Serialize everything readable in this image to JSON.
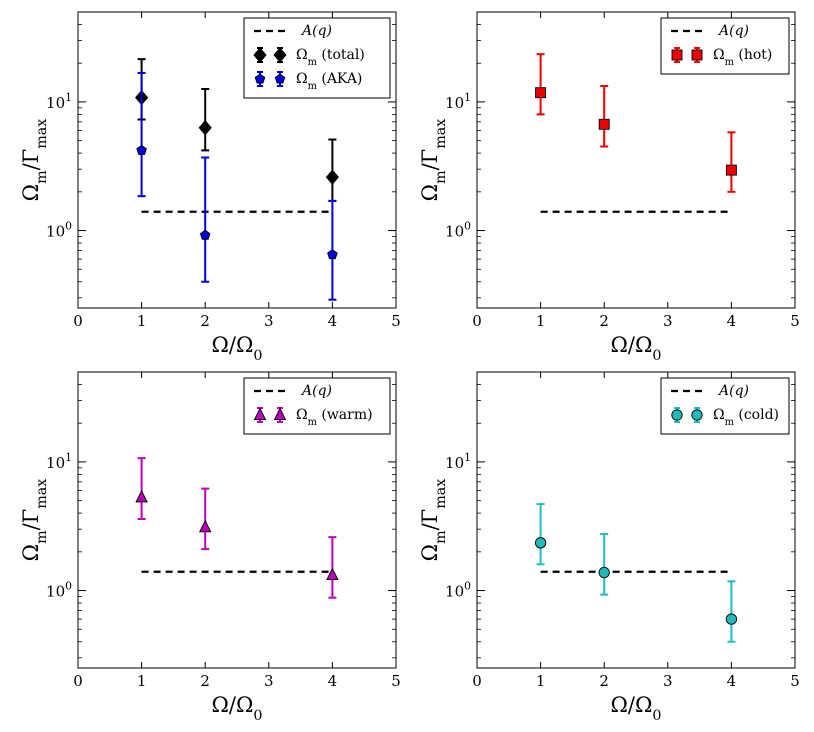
{
  "chart_data": [
    {
      "type": "scatter",
      "panel": "top-left",
      "xlabel": "Ω/Ω₀",
      "ylabel": "Ωm/Γmax",
      "xlim": [
        0,
        5
      ],
      "ylim": [
        0.25,
        50
      ],
      "yscale": "log",
      "xticks": [
        "0",
        "1",
        "2",
        "3",
        "4",
        "5"
      ],
      "yticks": [
        {
          "label": "10⁰",
          "value": 1
        },
        {
          "label": "10¹",
          "value": 10
        }
      ],
      "legend_position": "top-right",
      "reference_line": {
        "name": "A(q)",
        "x": [
          1,
          4
        ],
        "y": 1.4
      },
      "series": [
        {
          "name": "Ωm (total)",
          "color": "#000000",
          "marker": "diamond",
          "x": [
            1,
            2,
            4
          ],
          "y": [
            10.8,
            6.3,
            2.6
          ],
          "lower": [
            7.3,
            4.2,
            1.7
          ],
          "upper": [
            21.5,
            12.6,
            5.1
          ]
        },
        {
          "name": "Ωm (AKA)",
          "color": "#0000dd",
          "marker": "pentagon",
          "x": [
            1,
            2,
            4
          ],
          "y": [
            4.2,
            0.92,
            0.65
          ],
          "lower": [
            1.85,
            0.4,
            0.29
          ],
          "upper": [
            16.8,
            3.7,
            1.7
          ]
        }
      ]
    },
    {
      "type": "scatter",
      "panel": "top-right",
      "xlabel": "Ω/Ω₀",
      "ylabel": "Ωm/Γmax",
      "xlim": [
        0,
        5
      ],
      "ylim": [
        0.25,
        50
      ],
      "yscale": "log",
      "xticks": [
        "0",
        "1",
        "2",
        "3",
        "4",
        "5"
      ],
      "yticks": [
        {
          "label": "10⁰",
          "value": 1
        },
        {
          "label": "10¹",
          "value": 10
        }
      ],
      "legend_position": "top-right",
      "reference_line": {
        "name": "A(q)",
        "x": [
          1,
          4
        ],
        "y": 1.4
      },
      "series": [
        {
          "name": "Ωm (hot)",
          "color": "#ee0000",
          "marker": "square",
          "x": [
            1,
            2,
            4
          ],
          "y": [
            11.8,
            6.7,
            2.95
          ],
          "lower": [
            8.0,
            4.5,
            2.0
          ],
          "upper": [
            23.5,
            13.3,
            5.8
          ]
        }
      ]
    },
    {
      "type": "scatter",
      "panel": "bottom-left",
      "xlabel": "Ω/Ω₀",
      "ylabel": "Ωm/Γmax",
      "xlim": [
        0,
        5
      ],
      "ylim": [
        0.25,
        50
      ],
      "yscale": "log",
      "xticks": [
        "0",
        "1",
        "2",
        "3",
        "4",
        "5"
      ],
      "yticks": [
        {
          "label": "10⁰",
          "value": 1
        },
        {
          "label": "10¹",
          "value": 10
        }
      ],
      "legend_position": "top-right",
      "reference_line": {
        "name": "A(q)",
        "x": [
          1,
          4
        ],
        "y": 1.4
      },
      "series": [
        {
          "name": "Ωm (warm)",
          "color": "#bb00bb",
          "marker": "triangle",
          "x": [
            1,
            2,
            4
          ],
          "y": [
            5.3,
            3.1,
            1.32
          ],
          "lower": [
            3.6,
            2.1,
            0.88
          ],
          "upper": [
            10.7,
            6.2,
            2.6
          ]
        }
      ]
    },
    {
      "type": "scatter",
      "panel": "bottom-right",
      "xlabel": "Ω/Ω₀",
      "ylabel": "Ωm/Γmax",
      "xlim": [
        0,
        5
      ],
      "ylim": [
        0.25,
        50
      ],
      "yscale": "log",
      "xticks": [
        "0",
        "1",
        "2",
        "3",
        "4",
        "5"
      ],
      "yticks": [
        {
          "label": "10⁰",
          "value": 1
        },
        {
          "label": "10¹",
          "value": 10
        }
      ],
      "legend_position": "top-right",
      "reference_line": {
        "name": "A(q)",
        "x": [
          1,
          4
        ],
        "y": 1.4
      },
      "series": [
        {
          "name": "Ωm (cold)",
          "color": "#22bbbb",
          "marker": "circle",
          "x": [
            1,
            2,
            4
          ],
          "y": [
            2.35,
            1.38,
            0.6
          ],
          "lower": [
            1.6,
            0.93,
            0.4
          ],
          "upper": [
            4.7,
            2.75,
            1.18
          ]
        }
      ]
    }
  ]
}
